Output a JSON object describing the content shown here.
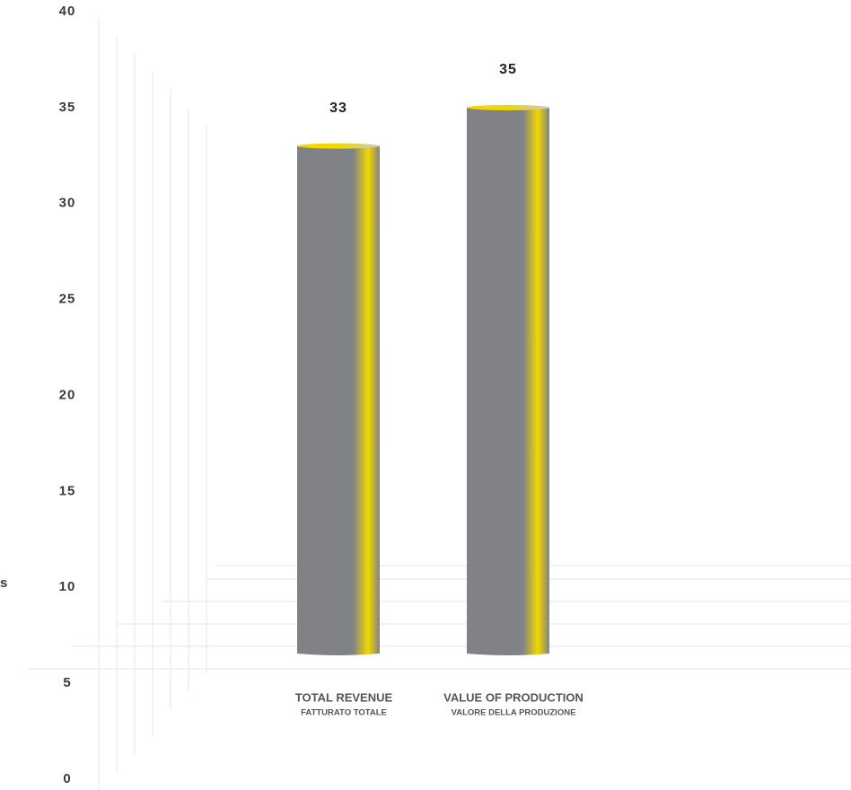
{
  "chart_data": {
    "type": "bar",
    "y_label": "s",
    "categories": [
      "TOTAL REVENUE",
      "VALUE OF PRODUCTION"
    ],
    "category_sublabels": [
      "FATTURATO TOTALE",
      "VALORE DELLA PRODUZIONE"
    ],
    "values": [
      33,
      35
    ],
    "color": "#818286",
    "accent_color": "#f2d700",
    "ylim": [
      0,
      40
    ],
    "yticks": [
      0,
      5,
      10,
      15,
      20,
      25,
      30,
      35,
      40
    ]
  }
}
